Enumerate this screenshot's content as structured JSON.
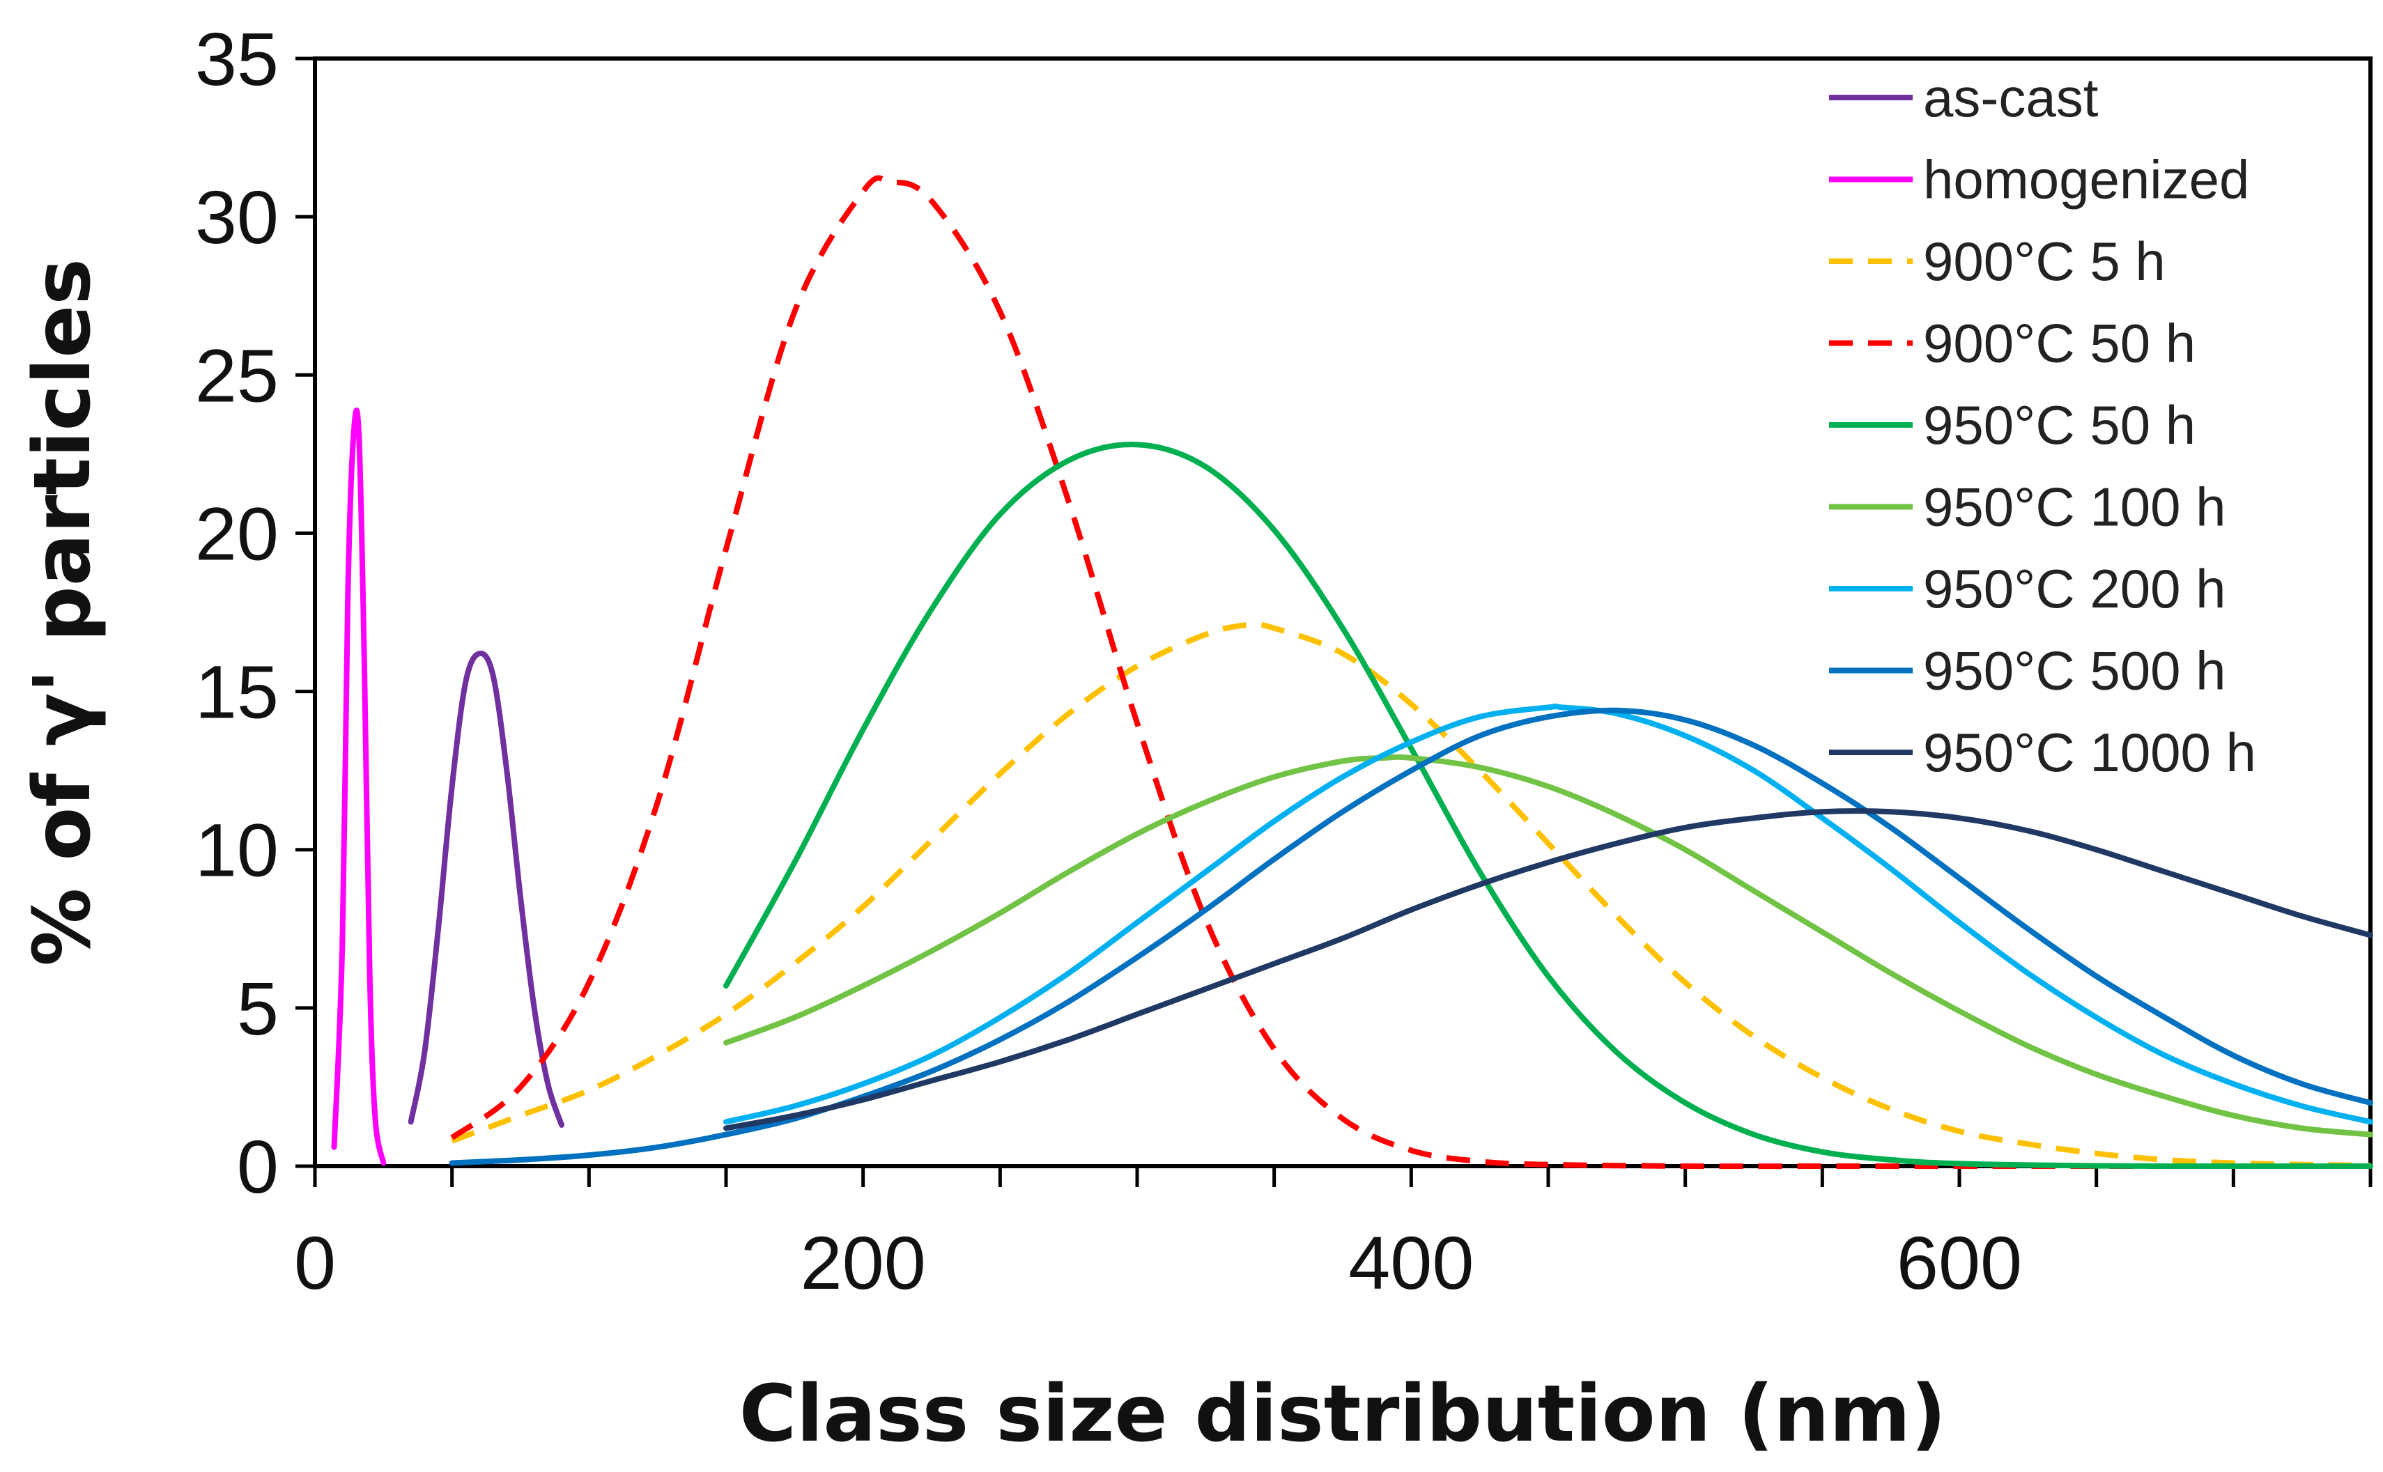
{
  "chart_data": {
    "type": "line",
    "title": "",
    "xlabel": "Class size distribution (nm)",
    "ylabel": "% of γ' particles",
    "xlim": [
      0,
      750
    ],
    "ylim": [
      0,
      35
    ],
    "xticks": [
      0,
      200,
      400,
      600
    ],
    "yticks": [
      0,
      5,
      10,
      15,
      20,
      25,
      30,
      35
    ],
    "x_minor_step": 50,
    "grid": false,
    "legend_position": "top-right",
    "series": [
      {
        "name": "as-cast",
        "color": "#7030a0",
        "dash": false,
        "x": [
          35,
          40,
          45,
          50,
          55,
          60,
          65,
          70,
          75,
          80,
          85,
          90
        ],
        "y": [
          1.4,
          3.6,
          7.5,
          12.0,
          15.3,
          16.2,
          15.5,
          12.5,
          8.5,
          5.0,
          2.6,
          1.3
        ]
      },
      {
        "name": "homogenized",
        "color": "#ff00ff",
        "dash": false,
        "x": [
          7,
          10,
          12,
          14,
          16,
          18,
          20,
          22,
          25
        ],
        "y": [
          0.6,
          7.0,
          18.0,
          23.0,
          23.2,
          16.0,
          6.0,
          1.5,
          0.1
        ]
      },
      {
        "name": "900°C 5 h",
        "color": "#ffc000",
        "dash": true,
        "x": [
          50,
          75,
          100,
          125,
          150,
          175,
          200,
          225,
          250,
          275,
          300,
          325,
          340,
          350,
          375,
          400,
          425,
          450,
          475,
          500,
          525,
          550,
          575,
          600,
          625,
          650,
          675,
          700,
          725,
          750
        ],
        "y": [
          0.8,
          1.6,
          2.4,
          3.5,
          4.8,
          6.4,
          8.2,
          10.3,
          12.4,
          14.3,
          15.8,
          16.8,
          17.1,
          17.0,
          16.2,
          14.6,
          12.5,
          10.2,
          7.9,
          5.8,
          4.1,
          2.8,
          1.8,
          1.1,
          0.7,
          0.4,
          0.2,
          0.1,
          0.05,
          0.02
        ]
      },
      {
        "name": "900°C 50 h",
        "color": "#ff0000",
        "dash": true,
        "x": [
          50,
          75,
          100,
          125,
          150,
          175,
          200,
          210,
          225,
          250,
          275,
          300,
          325,
          350,
          375,
          400,
          425,
          450,
          500,
          550,
          600,
          650,
          700,
          750
        ],
        "y": [
          0.9,
          2.5,
          5.8,
          11.5,
          19.5,
          27.0,
          30.8,
          31.1,
          30.5,
          27.0,
          21.0,
          14.0,
          7.8,
          3.7,
          1.5,
          0.5,
          0.15,
          0.05,
          0.0,
          0.0,
          0.0,
          0.0,
          0.0,
          0.0
        ]
      },
      {
        "name": "950°C 50 h",
        "color": "#00b050",
        "dash": false,
        "x": [
          150,
          175,
          200,
          225,
          250,
          275,
          300,
          325,
          350,
          375,
          400,
          425,
          450,
          475,
          500,
          525,
          550,
          575,
          600,
          650,
          700,
          750
        ],
        "y": [
          5.7,
          9.6,
          13.8,
          17.6,
          20.6,
          22.3,
          22.8,
          22.1,
          20.1,
          17.0,
          13.2,
          9.3,
          6.0,
          3.6,
          2.0,
          1.0,
          0.45,
          0.2,
          0.08,
          0.01,
          0.0,
          0.0
        ]
      },
      {
        "name": "950°C 100 h",
        "color": "#70c344",
        "dash": false,
        "x": [
          150,
          175,
          200,
          225,
          250,
          275,
          300,
          325,
          350,
          375,
          390,
          400,
          425,
          450,
          475,
          500,
          525,
          550,
          575,
          600,
          625,
          650,
          675,
          700,
          725,
          750
        ],
        "y": [
          3.9,
          4.7,
          5.7,
          6.8,
          8.0,
          9.3,
          10.5,
          11.5,
          12.3,
          12.8,
          12.9,
          12.9,
          12.6,
          12.0,
          11.1,
          10.0,
          8.7,
          7.4,
          6.1,
          4.9,
          3.8,
          2.9,
          2.2,
          1.6,
          1.2,
          1.0
        ]
      },
      {
        "name": "950°C 200 h",
        "color": "#00b0f0",
        "dash": false,
        "x": [
          150,
          175,
          200,
          225,
          250,
          275,
          300,
          325,
          350,
          375,
          400,
          425,
          450,
          455,
          475,
          500,
          525,
          550,
          575,
          600,
          625,
          650,
          675,
          700,
          725,
          750
        ],
        "y": [
          1.4,
          1.9,
          2.6,
          3.5,
          4.7,
          6.1,
          7.7,
          9.3,
          10.9,
          12.3,
          13.4,
          14.2,
          14.5,
          14.5,
          14.3,
          13.6,
          12.5,
          11.0,
          9.4,
          7.7,
          6.1,
          4.7,
          3.5,
          2.6,
          1.9,
          1.4
        ]
      },
      {
        "name": "950°C 500 h",
        "color": "#0070c0",
        "dash": false,
        "x": [
          50,
          75,
          100,
          125,
          150,
          175,
          200,
          225,
          250,
          275,
          300,
          325,
          350,
          375,
          400,
          425,
          450,
          475,
          500,
          525,
          550,
          575,
          600,
          625,
          650,
          675,
          700,
          725,
          750
        ],
        "y": [
          0.1,
          0.2,
          0.35,
          0.6,
          1.0,
          1.5,
          2.2,
          3.0,
          4.0,
          5.2,
          6.6,
          8.1,
          9.7,
          11.2,
          12.5,
          13.6,
          14.2,
          14.4,
          14.1,
          13.3,
          12.1,
          10.7,
          9.1,
          7.5,
          6.0,
          4.7,
          3.5,
          2.6,
          2.0
        ]
      },
      {
        "name": "950°C 1000 h",
        "color": "#1f3864",
        "dash": false,
        "x": [
          150,
          175,
          200,
          225,
          250,
          275,
          300,
          325,
          350,
          375,
          400,
          425,
          450,
          475,
          500,
          525,
          550,
          575,
          600,
          625,
          650,
          675,
          700,
          725,
          750
        ],
        "y": [
          1.2,
          1.6,
          2.1,
          2.7,
          3.3,
          4.0,
          4.8,
          5.6,
          6.4,
          7.2,
          8.1,
          8.9,
          9.6,
          10.2,
          10.7,
          11.0,
          11.2,
          11.2,
          11.0,
          10.6,
          10.0,
          9.3,
          8.6,
          7.9,
          7.3
        ]
      }
    ]
  }
}
